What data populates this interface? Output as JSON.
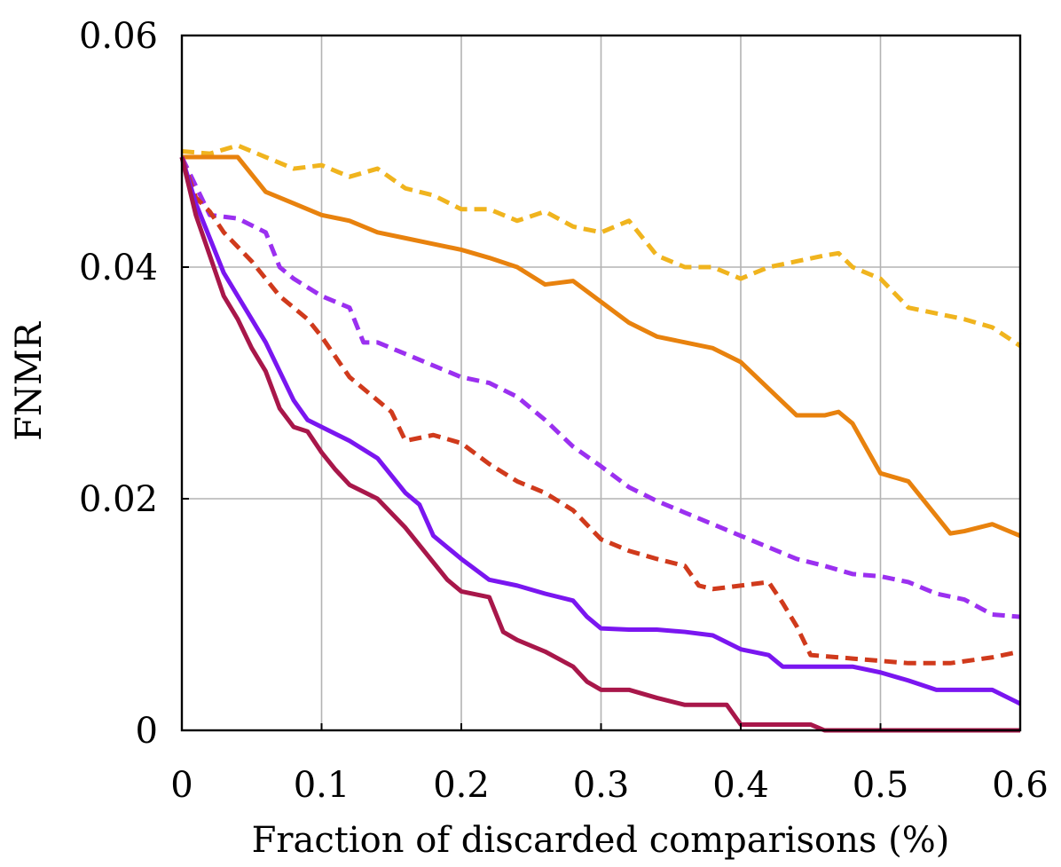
{
  "chart_data": {
    "type": "line",
    "title": "",
    "xlabel": "Fraction of discarded comparisons (%)",
    "ylabel": "FNMR",
    "xlim": [
      0,
      0.6
    ],
    "ylim": [
      0,
      0.06
    ],
    "xticks": [
      0,
      0.1,
      0.2,
      0.3,
      0.4,
      0.5,
      0.6
    ],
    "yticks": [
      0,
      0.02,
      0.04,
      0.06
    ],
    "xtick_labels": [
      "0",
      "0.1",
      "0.2",
      "0.3",
      "0.4",
      "0.5",
      "0.6"
    ],
    "ytick_labels": [
      "0",
      "0.02",
      "0.04",
      "0.06"
    ],
    "grid": true,
    "legend": "none",
    "series": [
      {
        "color": "#f0b41e",
        "dash": "dashed",
        "points": [
          [
            0,
            0.05
          ],
          [
            0.02,
            0.0498
          ],
          [
            0.04,
            0.0505
          ],
          [
            0.06,
            0.0495
          ],
          [
            0.08,
            0.0485
          ],
          [
            0.1,
            0.0488
          ],
          [
            0.12,
            0.0478
          ],
          [
            0.14,
            0.0485
          ],
          [
            0.16,
            0.0468
          ],
          [
            0.18,
            0.0462
          ],
          [
            0.2,
            0.045
          ],
          [
            0.22,
            0.045
          ],
          [
            0.24,
            0.044
          ],
          [
            0.26,
            0.0448
          ],
          [
            0.28,
            0.0435
          ],
          [
            0.3,
            0.043
          ],
          [
            0.32,
            0.044
          ],
          [
            0.34,
            0.041
          ],
          [
            0.36,
            0.04
          ],
          [
            0.38,
            0.04
          ],
          [
            0.4,
            0.039
          ],
          [
            0.42,
            0.04
          ],
          [
            0.44,
            0.0405
          ],
          [
            0.46,
            0.041
          ],
          [
            0.47,
            0.0412
          ],
          [
            0.48,
            0.04
          ],
          [
            0.5,
            0.039
          ],
          [
            0.52,
            0.0365
          ],
          [
            0.54,
            0.036
          ],
          [
            0.56,
            0.0355
          ],
          [
            0.58,
            0.0348
          ],
          [
            0.6,
            0.0332
          ]
        ]
      },
      {
        "color": "#e8820e",
        "dash": "solid",
        "points": [
          [
            0,
            0.0495
          ],
          [
            0.02,
            0.0495
          ],
          [
            0.04,
            0.0495
          ],
          [
            0.06,
            0.0465
          ],
          [
            0.08,
            0.0455
          ],
          [
            0.1,
            0.0445
          ],
          [
            0.12,
            0.044
          ],
          [
            0.14,
            0.043
          ],
          [
            0.16,
            0.0425
          ],
          [
            0.18,
            0.042
          ],
          [
            0.2,
            0.0415
          ],
          [
            0.22,
            0.0408
          ],
          [
            0.24,
            0.04
          ],
          [
            0.26,
            0.0385
          ],
          [
            0.28,
            0.0388
          ],
          [
            0.3,
            0.037
          ],
          [
            0.32,
            0.0352
          ],
          [
            0.34,
            0.034
          ],
          [
            0.36,
            0.0335
          ],
          [
            0.38,
            0.033
          ],
          [
            0.4,
            0.0318
          ],
          [
            0.42,
            0.0295
          ],
          [
            0.44,
            0.0272
          ],
          [
            0.46,
            0.0272
          ],
          [
            0.47,
            0.0275
          ],
          [
            0.48,
            0.0265
          ],
          [
            0.5,
            0.0222
          ],
          [
            0.52,
            0.0215
          ],
          [
            0.54,
            0.0185
          ],
          [
            0.55,
            0.017
          ],
          [
            0.56,
            0.0172
          ],
          [
            0.58,
            0.0178
          ],
          [
            0.6,
            0.0168
          ]
        ]
      },
      {
        "color": "#9b30f0",
        "dash": "dashed",
        "points": [
          [
            0,
            0.0495
          ],
          [
            0.01,
            0.047
          ],
          [
            0.02,
            0.0445
          ],
          [
            0.04,
            0.0442
          ],
          [
            0.06,
            0.043
          ],
          [
            0.07,
            0.04
          ],
          [
            0.08,
            0.039
          ],
          [
            0.1,
            0.0375
          ],
          [
            0.12,
            0.0365
          ],
          [
            0.13,
            0.0335
          ],
          [
            0.14,
            0.0335
          ],
          [
            0.16,
            0.0325
          ],
          [
            0.18,
            0.0315
          ],
          [
            0.2,
            0.0305
          ],
          [
            0.22,
            0.03
          ],
          [
            0.24,
            0.0288
          ],
          [
            0.26,
            0.0268
          ],
          [
            0.28,
            0.0245
          ],
          [
            0.3,
            0.0228
          ],
          [
            0.32,
            0.021
          ],
          [
            0.34,
            0.0198
          ],
          [
            0.36,
            0.0188
          ],
          [
            0.38,
            0.0178
          ],
          [
            0.4,
            0.0168
          ],
          [
            0.42,
            0.0158
          ],
          [
            0.44,
            0.0148
          ],
          [
            0.46,
            0.0142
          ],
          [
            0.48,
            0.0135
          ],
          [
            0.5,
            0.0133
          ],
          [
            0.52,
            0.0128
          ],
          [
            0.54,
            0.0118
          ],
          [
            0.56,
            0.0113
          ],
          [
            0.58,
            0.01
          ],
          [
            0.6,
            0.0098
          ]
        ]
      },
      {
        "color": "#d03a1c",
        "dash": "dashed",
        "points": [
          [
            0,
            0.0495
          ],
          [
            0.01,
            0.046
          ],
          [
            0.02,
            0.0448
          ],
          [
            0.03,
            0.043
          ],
          [
            0.05,
            0.0405
          ],
          [
            0.07,
            0.0375
          ],
          [
            0.09,
            0.0355
          ],
          [
            0.1,
            0.034
          ],
          [
            0.12,
            0.0305
          ],
          [
            0.14,
            0.0285
          ],
          [
            0.15,
            0.0275
          ],
          [
            0.16,
            0.025
          ],
          [
            0.18,
            0.0255
          ],
          [
            0.2,
            0.0248
          ],
          [
            0.22,
            0.023
          ],
          [
            0.24,
            0.0215
          ],
          [
            0.26,
            0.0205
          ],
          [
            0.28,
            0.019
          ],
          [
            0.3,
            0.0165
          ],
          [
            0.32,
            0.0155
          ],
          [
            0.34,
            0.0148
          ],
          [
            0.36,
            0.0142
          ],
          [
            0.37,
            0.0125
          ],
          [
            0.38,
            0.0122
          ],
          [
            0.4,
            0.0125
          ],
          [
            0.42,
            0.0128
          ],
          [
            0.43,
            0.011
          ],
          [
            0.44,
            0.009
          ],
          [
            0.45,
            0.0065
          ],
          [
            0.48,
            0.0062
          ],
          [
            0.5,
            0.006
          ],
          [
            0.52,
            0.0058
          ],
          [
            0.55,
            0.0058
          ],
          [
            0.58,
            0.0063
          ],
          [
            0.6,
            0.0068
          ]
        ]
      },
      {
        "color": "#7a16f0",
        "dash": "solid",
        "points": [
          [
            0,
            0.0495
          ],
          [
            0.01,
            0.0455
          ],
          [
            0.02,
            0.0425
          ],
          [
            0.03,
            0.0395
          ],
          [
            0.04,
            0.0375
          ],
          [
            0.05,
            0.0355
          ],
          [
            0.06,
            0.0335
          ],
          [
            0.07,
            0.031
          ],
          [
            0.08,
            0.0285
          ],
          [
            0.09,
            0.0268
          ],
          [
            0.1,
            0.0262
          ],
          [
            0.12,
            0.025
          ],
          [
            0.14,
            0.0235
          ],
          [
            0.16,
            0.0205
          ],
          [
            0.17,
            0.0195
          ],
          [
            0.18,
            0.0168
          ],
          [
            0.2,
            0.0148
          ],
          [
            0.22,
            0.013
          ],
          [
            0.24,
            0.0125
          ],
          [
            0.26,
            0.0118
          ],
          [
            0.28,
            0.0112
          ],
          [
            0.29,
            0.0098
          ],
          [
            0.3,
            0.0088
          ],
          [
            0.32,
            0.0087
          ],
          [
            0.34,
            0.0087
          ],
          [
            0.36,
            0.0085
          ],
          [
            0.38,
            0.0082
          ],
          [
            0.4,
            0.007
          ],
          [
            0.42,
            0.0065
          ],
          [
            0.43,
            0.0055
          ],
          [
            0.46,
            0.0055
          ],
          [
            0.48,
            0.0055
          ],
          [
            0.5,
            0.005
          ],
          [
            0.52,
            0.0043
          ],
          [
            0.54,
            0.0035
          ],
          [
            0.56,
            0.0035
          ],
          [
            0.58,
            0.0035
          ],
          [
            0.6,
            0.0023
          ]
        ]
      },
      {
        "color": "#a8174a",
        "dash": "solid",
        "points": [
          [
            0,
            0.0495
          ],
          [
            0.01,
            0.0445
          ],
          [
            0.02,
            0.041
          ],
          [
            0.03,
            0.0375
          ],
          [
            0.04,
            0.0355
          ],
          [
            0.05,
            0.033
          ],
          [
            0.06,
            0.031
          ],
          [
            0.07,
            0.0278
          ],
          [
            0.08,
            0.0262
          ],
          [
            0.09,
            0.0258
          ],
          [
            0.1,
            0.024
          ],
          [
            0.11,
            0.0225
          ],
          [
            0.12,
            0.0212
          ],
          [
            0.14,
            0.02
          ],
          [
            0.16,
            0.0175
          ],
          [
            0.18,
            0.0145
          ],
          [
            0.19,
            0.013
          ],
          [
            0.2,
            0.012
          ],
          [
            0.22,
            0.0115
          ],
          [
            0.23,
            0.0085
          ],
          [
            0.24,
            0.0078
          ],
          [
            0.26,
            0.0068
          ],
          [
            0.28,
            0.0055
          ],
          [
            0.29,
            0.0042
          ],
          [
            0.3,
            0.0035
          ],
          [
            0.32,
            0.0035
          ],
          [
            0.34,
            0.0028
          ],
          [
            0.36,
            0.0022
          ],
          [
            0.38,
            0.0022
          ],
          [
            0.39,
            0.0022
          ],
          [
            0.4,
            0.0005
          ],
          [
            0.42,
            0.0005
          ],
          [
            0.45,
            0.0005
          ],
          [
            0.46,
            0.0
          ],
          [
            0.5,
            0.0
          ],
          [
            0.6,
            0.0
          ]
        ]
      }
    ]
  }
}
